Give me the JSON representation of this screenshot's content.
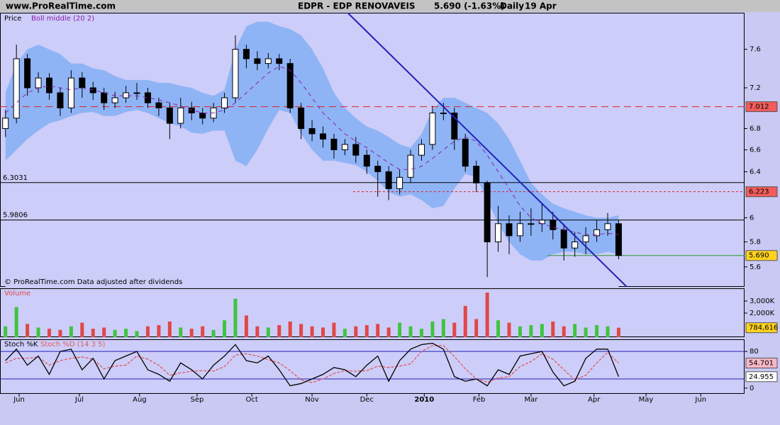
{
  "header": {
    "site": "www.ProRealTime.com",
    "title": "EDPR - EDP RENOVAVEIS",
    "last_price": "5.690 (-1.63%)",
    "period": "Daily",
    "date": "19 Apr"
  },
  "chart_data": [
    {
      "type": "candlestick",
      "title": "Price",
      "footnote": "© ProRealTime.com  Data adjusted after dividends",
      "log_scale": true,
      "ylim": [
        5.445,
        8.0
      ],
      "yticks": [
        7.6,
        7.2,
        6.8,
        6.6,
        6.4,
        6,
        5.8,
        5.6
      ],
      "xlim": [
        -1,
        271
      ],
      "up_color": "#ffffff",
      "down_color": "#000000",
      "x": [
        1,
        5,
        9,
        13,
        17,
        21,
        25,
        29,
        33,
        37,
        41,
        45,
        49,
        53,
        57,
        61,
        65,
        69,
        73,
        77,
        81,
        85,
        89,
        93,
        97,
        101,
        105,
        109,
        113,
        117,
        121,
        125,
        129,
        133,
        137,
        141,
        145,
        149,
        153,
        157,
        161,
        165,
        169,
        173,
        177,
        181,
        185,
        189,
        193,
        197,
        201,
        205,
        209,
        213,
        217,
        221,
        225
      ],
      "open": [
        6.8,
        6.9,
        7.5,
        7.2,
        7.3,
        7.15,
        7.0,
        7.3,
        7.2,
        7.15,
        7.05,
        7.1,
        7.15,
        7.15,
        7.05,
        7.0,
        6.85,
        7.0,
        6.95,
        6.9,
        7.0,
        7.1,
        7.6,
        7.5,
        7.45,
        7.5,
        7.45,
        7.0,
        6.8,
        6.75,
        6.7,
        6.6,
        6.65,
        6.55,
        6.45,
        6.4,
        6.25,
        6.35,
        6.55,
        6.65,
        6.95,
        6.95,
        6.7,
        6.45,
        6.3,
        5.8,
        5.95,
        5.85,
        5.95,
        5.95,
        5.98,
        5.9,
        5.75,
        5.8,
        5.85,
        5.9,
        5.95
      ],
      "high": [
        6.98,
        7.65,
        7.55,
        7.36,
        7.35,
        7.2,
        7.38,
        7.36,
        7.26,
        7.2,
        7.16,
        7.22,
        7.25,
        7.2,
        7.1,
        7.05,
        7.1,
        7.06,
        7.0,
        7.05,
        7.15,
        7.75,
        7.65,
        7.58,
        7.56,
        7.55,
        7.5,
        7.05,
        6.88,
        6.82,
        6.75,
        6.7,
        6.72,
        6.6,
        6.5,
        6.45,
        6.42,
        6.6,
        6.7,
        7.02,
        7.05,
        7.0,
        6.75,
        6.5,
        6.32,
        6.1,
        6.02,
        6.05,
        6.08,
        6.12,
        6.05,
        5.95,
        5.88,
        5.92,
        5.98,
        6.04,
        5.98
      ],
      "low": [
        6.72,
        6.85,
        7.12,
        7.15,
        7.08,
        6.92,
        6.95,
        7.1,
        7.08,
        6.98,
        7.0,
        7.05,
        7.08,
        7.0,
        6.92,
        6.7,
        6.8,
        6.88,
        6.84,
        6.86,
        6.95,
        7.05,
        7.4,
        7.38,
        7.4,
        7.38,
        6.95,
        6.7,
        6.68,
        6.62,
        6.52,
        6.55,
        6.48,
        6.38,
        6.18,
        6.15,
        6.2,
        6.3,
        6.5,
        6.6,
        6.88,
        6.6,
        6.4,
        6.22,
        5.52,
        5.72,
        5.7,
        5.8,
        5.85,
        5.88,
        5.82,
        5.65,
        5.68,
        5.7,
        5.8,
        5.85,
        5.66
      ],
      "close": [
        6.9,
        7.5,
        7.2,
        7.3,
        7.15,
        7.0,
        7.3,
        7.2,
        7.15,
        7.05,
        7.1,
        7.15,
        7.15,
        7.05,
        7.0,
        6.85,
        7.0,
        6.95,
        6.9,
        7.0,
        7.1,
        7.6,
        7.5,
        7.45,
        7.5,
        7.45,
        7.0,
        6.8,
        6.75,
        6.7,
        6.6,
        6.65,
        6.55,
        6.45,
        6.4,
        6.25,
        6.35,
        6.55,
        6.65,
        6.95,
        6.95,
        6.7,
        6.45,
        6.3,
        5.8,
        5.95,
        5.85,
        5.95,
        5.95,
        5.98,
        5.9,
        5.75,
        5.8,
        5.85,
        5.9,
        5.95,
        5.69
      ],
      "bollinger": {
        "name": "Boll middle (20 2)",
        "color": "#8a1fa8",
        "band_color": "#8fb4f6",
        "upper": [
          7.15,
          7.45,
          7.6,
          7.65,
          7.6,
          7.55,
          7.45,
          7.45,
          7.4,
          7.38,
          7.32,
          7.28,
          7.28,
          7.28,
          7.25,
          7.25,
          7.22,
          7.2,
          7.15,
          7.12,
          7.18,
          7.6,
          7.85,
          7.9,
          7.9,
          7.85,
          7.82,
          7.75,
          7.6,
          7.4,
          7.15,
          7.0,
          6.9,
          6.82,
          6.78,
          6.72,
          6.65,
          6.62,
          6.75,
          6.98,
          7.1,
          7.1,
          7.05,
          7.0,
          6.95,
          6.85,
          6.7,
          6.5,
          6.3,
          6.2,
          6.12,
          6.08,
          6.05,
          6.02,
          6.0,
          6.0,
          6.02
        ],
        "middle": [
          6.95,
          7.05,
          7.15,
          7.2,
          7.22,
          7.2,
          7.18,
          7.2,
          7.18,
          7.15,
          7.12,
          7.12,
          7.12,
          7.1,
          7.08,
          7.05,
          7.02,
          6.98,
          6.95,
          6.95,
          6.98,
          7.05,
          7.15,
          7.25,
          7.35,
          7.42,
          7.38,
          7.25,
          7.1,
          6.95,
          6.85,
          6.75,
          6.68,
          6.62,
          6.55,
          6.48,
          6.42,
          6.42,
          6.45,
          6.52,
          6.6,
          6.68,
          6.72,
          6.68,
          6.55,
          6.4,
          6.25,
          6.1,
          6.0,
          5.95,
          5.92,
          5.9,
          5.88,
          5.86,
          5.86,
          5.87,
          5.86
        ],
        "lower": [
          6.5,
          6.6,
          6.7,
          6.78,
          6.85,
          6.88,
          6.92,
          6.95,
          6.96,
          6.92,
          6.92,
          6.96,
          6.98,
          6.95,
          6.9,
          6.85,
          6.82,
          6.76,
          6.75,
          6.78,
          6.78,
          6.5,
          6.45,
          6.6,
          6.8,
          6.98,
          6.95,
          6.75,
          6.6,
          6.5,
          6.5,
          6.48,
          6.46,
          6.4,
          6.32,
          6.22,
          6.18,
          6.2,
          6.15,
          6.08,
          6.1,
          6.25,
          6.38,
          6.35,
          6.15,
          5.95,
          5.8,
          5.7,
          5.65,
          5.65,
          5.7,
          5.72,
          5.72,
          5.7,
          5.7,
          5.72,
          5.7
        ]
      },
      "levels": [
        {
          "value": 7.012,
          "color": "#e02020",
          "style": "dashed",
          "label_side": "right",
          "box": "#f25c5c"
        },
        {
          "value": 6.3031,
          "color": "#000000",
          "style": "solid",
          "label_side": "left"
        },
        {
          "value": 6.223,
          "color": "#e02020",
          "style": "dotted",
          "label_side": "right",
          "box": "#f25c5c",
          "from": 128
        },
        {
          "value": 5.9806,
          "color": "#000000",
          "style": "solid",
          "label_side": "left"
        },
        {
          "value": 5.69,
          "label": "5.690",
          "color": "#2a9a2a",
          "style": "solid",
          "label_side": "right",
          "box": "#ffd21f",
          "from": 199
        }
      ],
      "trendline": {
        "x": [
          126,
          228
        ],
        "values": [
          8.0,
          5.445
        ],
        "color": "#2323b8"
      }
    },
    {
      "type": "bar",
      "title": "Volume",
      "ylim": [
        0,
        4000
      ],
      "yticks": [
        {
          "value": 3000,
          "label": "3,000K"
        },
        {
          "value": 2000,
          "label": "2,000K"
        }
      ],
      "up_color": "#3fc43f",
      "down_color": "#e04848",
      "last_value_label": "784,616",
      "values": [
        900,
        2500,
        1100,
        800,
        700,
        600,
        900,
        1200,
        700,
        800,
        600,
        700,
        500,
        900,
        1000,
        1300,
        800,
        700,
        900,
        600,
        1400,
        3200,
        1800,
        900,
        800,
        1000,
        1300,
        1100,
        900,
        800,
        1200,
        700,
        900,
        1000,
        1100,
        800,
        1200,
        900,
        700,
        1300,
        1500,
        1200,
        2600,
        1500,
        3700,
        1400,
        1200,
        900,
        1000,
        1100,
        1300,
        900,
        1100,
        800,
        1000,
        900,
        784.616
      ]
    },
    {
      "type": "line",
      "ylim": [
        -12.5,
        105
      ],
      "yticks": [
        80,
        0
      ],
      "levels": [
        80,
        20
      ],
      "xticks": [
        {
          "value": 6,
          "label": "Jun"
        },
        {
          "value": 28,
          "label": "Jul"
        },
        {
          "value": 50,
          "label": "Aug"
        },
        {
          "value": 71,
          "label": "Sep"
        },
        {
          "value": 91,
          "label": "Oct"
        },
        {
          "value": 113,
          "label": "Nov"
        },
        {
          "value": 133,
          "label": "Dec"
        },
        {
          "value": 154,
          "label": "2010"
        },
        {
          "value": 174,
          "label": "Feb"
        },
        {
          "value": 193,
          "label": "Mar"
        },
        {
          "value": 216,
          "label": "Apr"
        },
        {
          "value": 235,
          "label": "May"
        },
        {
          "value": 255,
          "label": "Jun"
        }
      ],
      "series": [
        {
          "name": "Stoch %K",
          "color": "#000000",
          "values": [
            60,
            85,
            50,
            70,
            30,
            80,
            85,
            40,
            65,
            20,
            60,
            70,
            80,
            40,
            30,
            15,
            55,
            40,
            20,
            50,
            70,
            95,
            60,
            55,
            70,
            40,
            5,
            10,
            20,
            30,
            45,
            40,
            25,
            50,
            70,
            15,
            60,
            85,
            95,
            98,
            85,
            25,
            15,
            20,
            5,
            40,
            30,
            70,
            75,
            80,
            35,
            5,
            15,
            65,
            85,
            85,
            24.955
          ]
        },
        {
          "name": "Stoch %D (14 3 5)",
          "color": "#e05a5a",
          "values": [
            55,
            65,
            65,
            68,
            50,
            60,
            65,
            68,
            63,
            42,
            48,
            50,
            70,
            63,
            50,
            28,
            33,
            37,
            38,
            37,
            47,
            72,
            75,
            70,
            62,
            55,
            38,
            18,
            12,
            20,
            32,
            38,
            37,
            38,
            48,
            45,
            48,
            53,
            80,
            93,
            93,
            69,
            42,
            20,
            13,
            22,
            25,
            47,
            58,
            75,
            63,
            40,
            18,
            28,
            55,
            78,
            54.701
          ]
        }
      ]
    }
  ]
}
